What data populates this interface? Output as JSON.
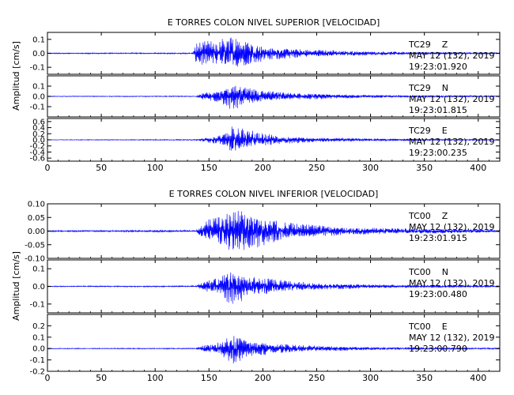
{
  "colors": {
    "trace": "#0000ff",
    "axis": "#000000",
    "background": "#ffffff"
  },
  "chart_data": [
    {
      "type": "line",
      "title": "E TORRES COLON NIVEL SUPERIOR [VELOCIDAD]",
      "ylabel": "Amplitud [cm/s]",
      "xlim": [
        0,
        420
      ],
      "xticks": [
        0,
        50,
        100,
        150,
        200,
        250,
        300,
        350,
        400
      ],
      "grid": false,
      "panels": [
        {
          "station": "TC29",
          "component": "Z",
          "date": "MAY 12 (132), 2019",
          "time": "19:23:01.920",
          "ylim": [
            -0.15,
            0.15
          ],
          "yticks": [
            -0.1,
            0.0,
            0.1
          ],
          "yticklabels": [
            "-0.1",
            "0.0",
            "0.1"
          ],
          "envelope": [
            [
              0,
              0.004
            ],
            [
              135,
              0.005
            ],
            [
              138,
              0.09
            ],
            [
              150,
              0.1
            ],
            [
              160,
              0.11
            ],
            [
              170,
              0.14
            ],
            [
              178,
              0.12
            ],
            [
              190,
              0.08
            ],
            [
              210,
              0.05
            ],
            [
              240,
              0.03
            ],
            [
              300,
              0.015
            ],
            [
              420,
              0.006
            ]
          ]
        },
        {
          "station": "TC29",
          "component": "N",
          "date": "MAY 12 (132), 2019",
          "time": "19:23:01.815",
          "ylim": [
            -0.2,
            0.2
          ],
          "yticks": [
            -0.1,
            0.0,
            0.1
          ],
          "yticklabels": [
            "-0.1",
            "0.0",
            "0.1"
          ],
          "envelope": [
            [
              0,
              0.004
            ],
            [
              138,
              0.005
            ],
            [
              145,
              0.04
            ],
            [
              160,
              0.06
            ],
            [
              172,
              0.17
            ],
            [
              178,
              0.12
            ],
            [
              195,
              0.07
            ],
            [
              220,
              0.04
            ],
            [
              260,
              0.025
            ],
            [
              320,
              0.012
            ],
            [
              420,
              0.006
            ]
          ]
        },
        {
          "station": "TC29",
          "component": "E",
          "date": "MAY 12 (132), 2019",
          "time": "19:23:00.235",
          "ylim": [
            -0.7,
            0.7
          ],
          "yticks": [
            -0.6,
            -0.4,
            -0.2,
            0.0,
            0.2,
            0.4,
            0.6
          ],
          "yticklabels": [
            "-0.6",
            "-0.4",
            "-0.2",
            "0.0",
            "0.2",
            "0.4",
            "0.6"
          ],
          "envelope": [
            [
              0,
              0.01
            ],
            [
              138,
              0.02
            ],
            [
              150,
              0.1
            ],
            [
              165,
              0.22
            ],
            [
              172,
              0.55
            ],
            [
              180,
              0.4
            ],
            [
              195,
              0.28
            ],
            [
              215,
              0.15
            ],
            [
              250,
              0.08
            ],
            [
              320,
              0.04
            ],
            [
              420,
              0.02
            ]
          ]
        }
      ]
    },
    {
      "type": "line",
      "title": "E TORRES COLON NIVEL INFERIOR [VELOCIDAD]",
      "ylabel": "Amplitud [cm/s]",
      "xlim": [
        0,
        420
      ],
      "xticks": [
        0,
        50,
        100,
        150,
        200,
        250,
        300,
        350,
        400
      ],
      "grid": false,
      "panels": [
        {
          "station": "TC00",
          "component": "Z",
          "date": "MAY 12 (132), 2019",
          "time": "19:23:01.915",
          "ylim": [
            -0.1,
            0.1
          ],
          "yticks": [
            -0.1,
            -0.05,
            0.0,
            0.05,
            0.1
          ],
          "yticklabels": [
            "-0.10",
            "-0.05",
            "0.00",
            "0.05",
            "0.10"
          ],
          "envelope": [
            [
              0,
              0.003
            ],
            [
              138,
              0.004
            ],
            [
              145,
              0.04
            ],
            [
              160,
              0.06
            ],
            [
              170,
              0.08
            ],
            [
              178,
              0.1
            ],
            [
              190,
              0.075
            ],
            [
              205,
              0.05
            ],
            [
              230,
              0.03
            ],
            [
              280,
              0.015
            ],
            [
              420,
              0.005
            ]
          ]
        },
        {
          "station": "TC00",
          "component": "N",
          "date": "MAY 12 (132), 2019",
          "time": "19:23:00.480",
          "ylim": [
            -0.15,
            0.15
          ],
          "yticks": [
            -0.1,
            0.0,
            0.1
          ],
          "yticklabels": [
            "-0.1",
            "0.0",
            "0.1"
          ],
          "envelope": [
            [
              0,
              0.003
            ],
            [
              138,
              0.004
            ],
            [
              145,
              0.03
            ],
            [
              160,
              0.06
            ],
            [
              172,
              0.12
            ],
            [
              180,
              0.09
            ],
            [
              195,
              0.06
            ],
            [
              215,
              0.04
            ],
            [
              250,
              0.02
            ],
            [
              320,
              0.01
            ],
            [
              420,
              0.005
            ]
          ]
        },
        {
          "station": "TC00",
          "component": "E",
          "date": "MAY 12 (132), 2019",
          "time": "19:23:00.790",
          "ylim": [
            -0.2,
            0.3
          ],
          "yticks": [
            -0.2,
            -0.1,
            0.0,
            0.1,
            0.2
          ],
          "yticklabels": [
            "-0.2",
            "-0.1",
            "0.0",
            "0.1",
            "0.2"
          ],
          "envelope": [
            [
              0,
              0.004
            ],
            [
              138,
              0.005
            ],
            [
              145,
              0.03
            ],
            [
              160,
              0.06
            ],
            [
              172,
              0.16
            ],
            [
              178,
              0.12
            ],
            [
              190,
              0.08
            ],
            [
              210,
              0.05
            ],
            [
              240,
              0.03
            ],
            [
              300,
              0.015
            ],
            [
              420,
              0.006
            ]
          ]
        }
      ]
    }
  ]
}
